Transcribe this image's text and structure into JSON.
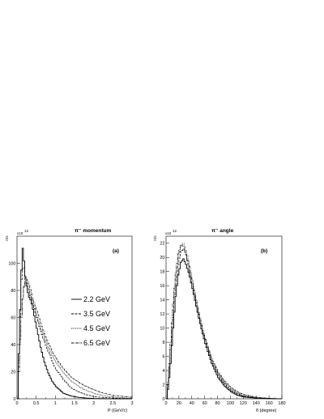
{
  "chart_data": [
    {
      "type": "line",
      "id": "a",
      "title": "π⁻ momentum",
      "panel_label": "(a)",
      "xlabel": "P (GeV/c)",
      "ylabel": "π/s",
      "exponent_base": "x10",
      "exponent_power": "12",
      "xlim": [
        0,
        3
      ],
      "ylim": [
        0,
        120
      ],
      "xticks": [
        0,
        0.5,
        1,
        1.5,
        2,
        2.5,
        3
      ],
      "xtick_labels": [
        "0",
        "0.5",
        "1",
        "1.5",
        "2",
        "2.5",
        "3"
      ],
      "yticks": [
        0,
        20,
        40,
        60,
        80,
        100
      ],
      "ytick_labels": [
        "0",
        "20",
        "40",
        "60",
        "80",
        "100"
      ],
      "series": [
        {
          "name": "2.2 GeV",
          "style": "solid",
          "x": [
            0,
            0.03,
            0.06,
            0.1,
            0.13,
            0.16,
            0.2,
            0.25,
            0.3,
            0.35,
            0.4,
            0.5,
            0.6,
            0.7,
            0.8,
            0.9,
            1.0,
            1.2,
            1.4,
            1.6,
            1.8,
            2.0,
            2.5,
            3.0
          ],
          "y": [
            0,
            30,
            60,
            95,
            112,
            104,
            90,
            80,
            75,
            72,
            66,
            52,
            38,
            27,
            19,
            13,
            9,
            4,
            2,
            1,
            0.5,
            0.2,
            0,
            0
          ]
        },
        {
          "name": "3.5 GeV",
          "style": "dashed",
          "x": [
            0,
            0.03,
            0.06,
            0.1,
            0.15,
            0.2,
            0.25,
            0.3,
            0.4,
            0.5,
            0.6,
            0.7,
            0.8,
            0.9,
            1.0,
            1.2,
            1.4,
            1.6,
            1.8,
            2.0,
            2.5,
            3.0
          ],
          "y": [
            0,
            25,
            55,
            88,
            100,
            91,
            83,
            79,
            70,
            60,
            50,
            42,
            35,
            28,
            22,
            14,
            8,
            5,
            3,
            1.5,
            0.5,
            0
          ]
        },
        {
          "name": "4.5 GeV",
          "style": "dotted",
          "x": [
            0,
            0.05,
            0.1,
            0.15,
            0.2,
            0.25,
            0.3,
            0.4,
            0.5,
            0.6,
            0.7,
            0.8,
            0.9,
            1.0,
            1.2,
            1.4,
            1.6,
            1.8,
            2.0,
            2.2,
            2.5,
            3.0
          ],
          "y": [
            0,
            30,
            60,
            80,
            86,
            85,
            80,
            70,
            61,
            52,
            45,
            38,
            32,
            27,
            19,
            13,
            9,
            6,
            4,
            2.5,
            1.2,
            0.3
          ]
        },
        {
          "name": "6.5 GeV",
          "style": "dashdot",
          "x": [
            0,
            0.05,
            0.1,
            0.15,
            0.2,
            0.25,
            0.3,
            0.4,
            0.5,
            0.6,
            0.7,
            0.8,
            0.9,
            1.0,
            1.2,
            1.4,
            1.6,
            1.8,
            2.0,
            2.2,
            2.5,
            3.0
          ],
          "y": [
            0,
            35,
            62,
            80,
            89,
            88,
            84,
            74,
            65,
            56,
            48,
            41,
            35,
            30,
            22,
            16,
            12,
            9,
            6.5,
            4.5,
            2.5,
            1
          ]
        }
      ],
      "legend": [
        "2.2 GeV",
        "3.5 GeV",
        "4.5 GeV",
        "6.5 GeV"
      ]
    },
    {
      "type": "line",
      "id": "b",
      "title": "π⁻ angle",
      "panel_label": "(b)",
      "xlabel": "θ (degree)",
      "ylabel": "π/s",
      "exponent_base": "x10",
      "exponent_power": "12",
      "xlim": [
        0,
        180
      ],
      "ylim": [
        0,
        23
      ],
      "xticks": [
        0,
        20,
        40,
        60,
        80,
        100,
        120,
        140,
        160,
        180
      ],
      "xtick_labels": [
        "0",
        "20",
        "40",
        "60",
        "80",
        "100",
        "120",
        "140",
        "160",
        "180"
      ],
      "yticks": [
        0,
        2,
        4,
        6,
        8,
        10,
        12,
        14,
        16,
        18,
        20,
        22
      ],
      "ytick_labels": [
        "0",
        "2",
        "4",
        "6",
        "8",
        "10",
        "12",
        "14",
        "16",
        "18",
        "20",
        "22"
      ],
      "series": [
        {
          "name": "2.2 GeV",
          "style": "solid",
          "x": [
            0,
            3,
            6,
            10,
            14,
            18,
            22,
            26,
            30,
            35,
            40,
            45,
            50,
            55,
            60,
            70,
            80,
            90,
            100,
            110,
            120,
            140,
            160,
            180
          ],
          "y": [
            0,
            2,
            5,
            10,
            14.5,
            17.5,
            19.3,
            19.8,
            19.0,
            17.6,
            15.6,
            13.5,
            11.4,
            9.5,
            7.8,
            5.0,
            3.0,
            1.8,
            1.0,
            0.5,
            0.25,
            0.08,
            0.02,
            0
          ]
        },
        {
          "name": "3.5 GeV",
          "style": "dashed",
          "x": [
            0,
            3,
            6,
            10,
            14,
            18,
            22,
            26,
            30,
            35,
            40,
            45,
            50,
            55,
            60,
            70,
            80,
            90,
            100,
            110,
            120,
            140,
            160,
            180
          ],
          "y": [
            0,
            2.5,
            6,
            11.5,
            16,
            19,
            20.8,
            21.2,
            20.4,
            18.6,
            16.4,
            14.2,
            12.0,
            10.0,
            8.3,
            5.4,
            3.4,
            2.1,
            1.2,
            0.7,
            0.35,
            0.1,
            0.03,
            0
          ]
        },
        {
          "name": "4.5 GeV",
          "style": "dotted",
          "x": [
            0,
            3,
            6,
            10,
            14,
            18,
            22,
            26,
            30,
            35,
            40,
            45,
            50,
            55,
            60,
            70,
            80,
            90,
            100,
            110,
            120,
            140,
            160,
            180
          ],
          "y": [
            0,
            3,
            7,
            12.5,
            17,
            20,
            21.6,
            22.0,
            21.0,
            19.2,
            16.8,
            14.5,
            12.2,
            10.2,
            8.5,
            5.6,
            3.6,
            2.3,
            1.4,
            0.8,
            0.45,
            0.15,
            0.04,
            0
          ]
        },
        {
          "name": "6.5 GeV",
          "style": "dashdot",
          "x": [
            0,
            3,
            6,
            10,
            14,
            18,
            22,
            26,
            30,
            35,
            40,
            45,
            50,
            55,
            60,
            70,
            80,
            90,
            100,
            110,
            120,
            140,
            160,
            180
          ],
          "y": [
            0,
            3.5,
            8,
            13.5,
            17.8,
            20.5,
            21.7,
            21.6,
            20.3,
            18.4,
            16.2,
            14.0,
            11.9,
            10.0,
            8.4,
            5.7,
            3.8,
            2.5,
            1.6,
            1.0,
            0.6,
            0.2,
            0.06,
            0
          ]
        }
      ]
    }
  ]
}
